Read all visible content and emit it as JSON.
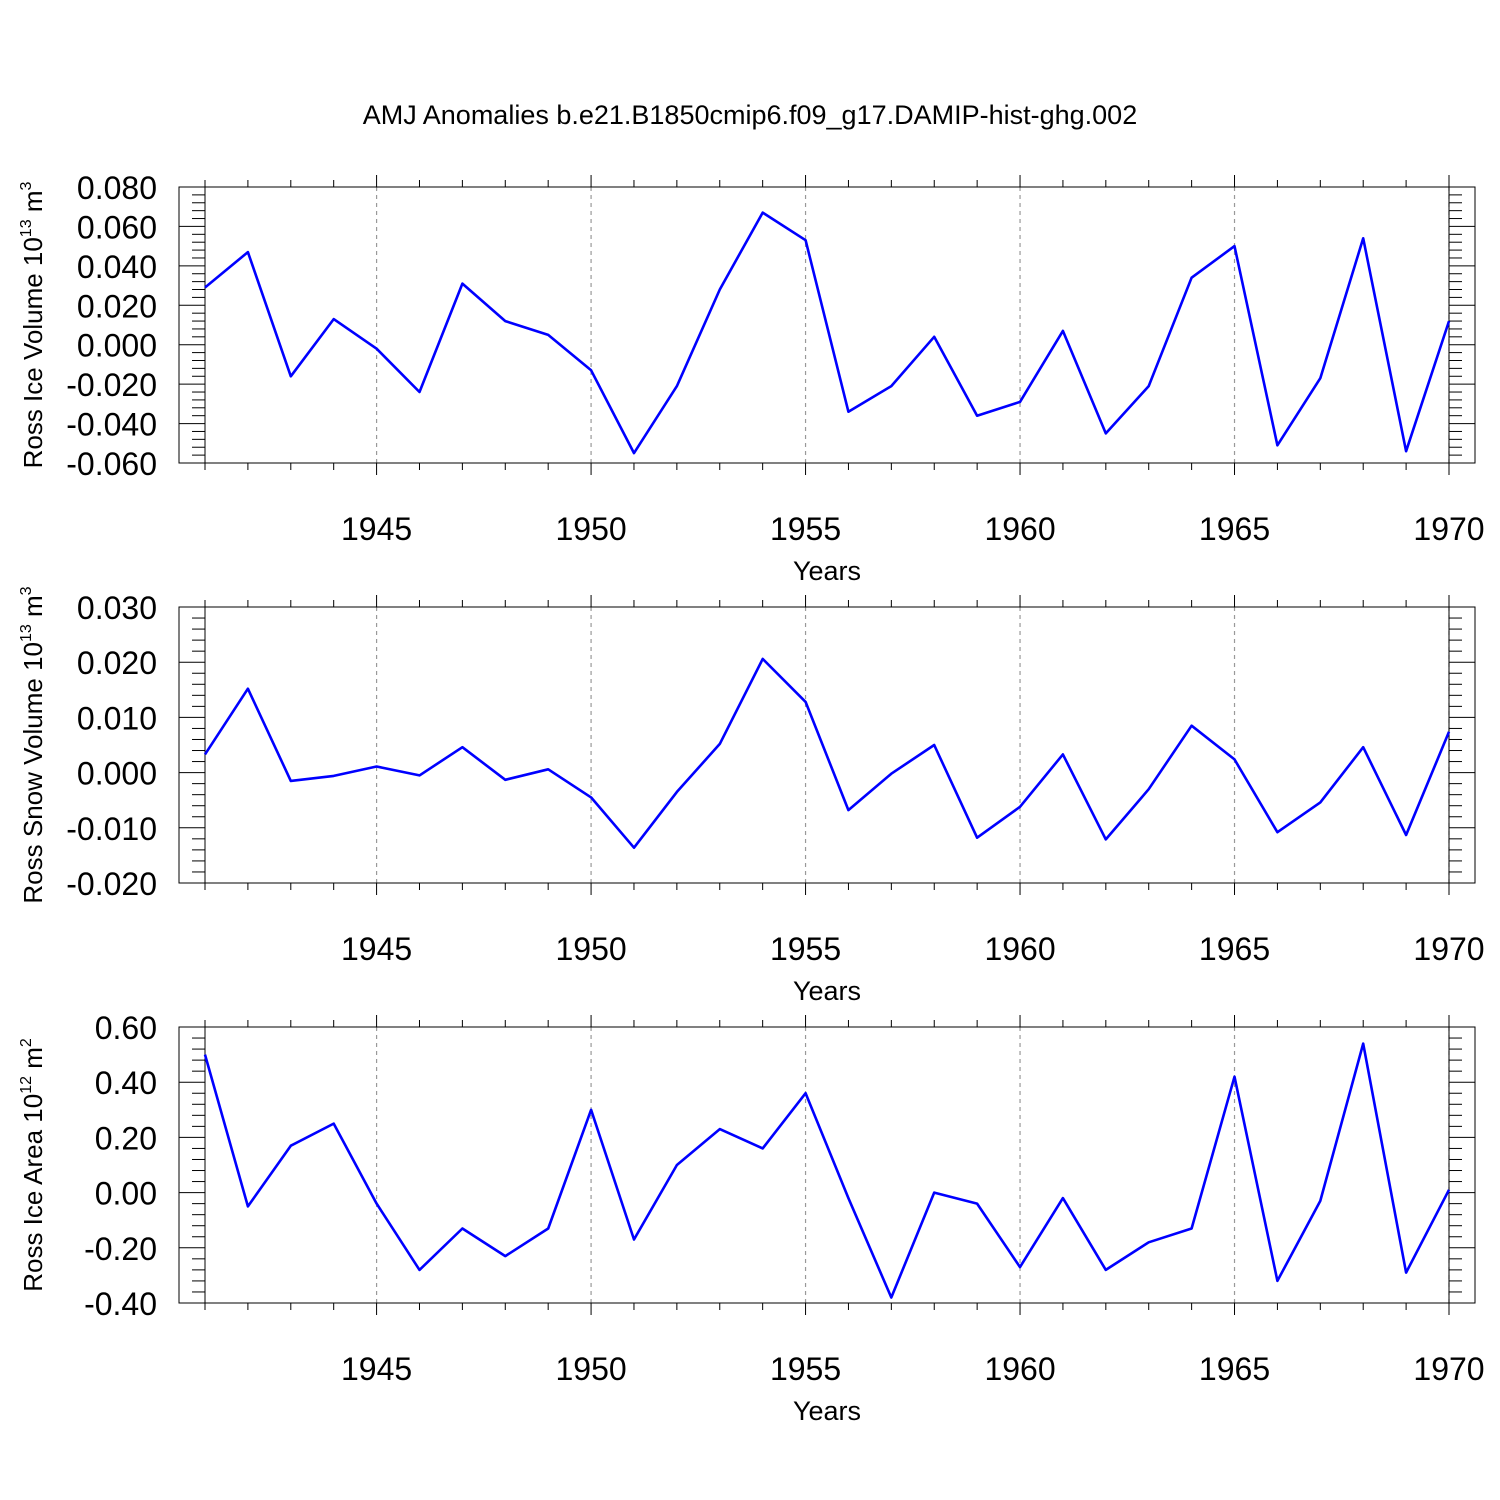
{
  "title": "AMJ Anomalies b.e21.B1850cmip6.f09_g17.DAMIP-hist-ghg.002",
  "chart_data": [
    {
      "type": "line",
      "ylabel": "Ross Ice Volume 10",
      "ylabel_exp": "13",
      "ylabel_unit": " m",
      "ylabel_unit_exp": "3",
      "xlabel": "Years",
      "xlim": [
        1941,
        1970
      ],
      "ylim": [
        -0.06,
        0.08
      ],
      "yticks": [
        -0.06,
        -0.04,
        -0.02,
        0.0,
        0.02,
        0.04,
        0.06,
        0.08
      ],
      "ytick_labels": [
        "-0.060",
        "-0.040",
        "-0.020",
        "0.000",
        "0.020",
        "0.040",
        "0.060",
        "0.080"
      ],
      "xticks": [
        1945,
        1950,
        1955,
        1960,
        1965,
        1970
      ],
      "xtick_labels": [
        "1945",
        "1950",
        "1955",
        "1960",
        "1965",
        "1970"
      ],
      "grid": "dashed vertical at labeled years",
      "color": "#0000ff",
      "x": [
        1941,
        1942,
        1943,
        1944,
        1945,
        1946,
        1947,
        1948,
        1949,
        1950,
        1951,
        1952,
        1953,
        1954,
        1955,
        1956,
        1957,
        1958,
        1959,
        1960,
        1961,
        1962,
        1963,
        1964,
        1965,
        1966,
        1967,
        1968,
        1969,
        1970
      ],
      "values": [
        0.029,
        0.047,
        -0.016,
        0.013,
        -0.002,
        -0.024,
        0.031,
        0.012,
        0.005,
        -0.013,
        -0.055,
        -0.021,
        0.028,
        0.067,
        0.053,
        -0.034,
        -0.021,
        0.004,
        -0.036,
        -0.029,
        0.007,
        -0.045,
        -0.021,
        0.034,
        0.05,
        -0.051,
        -0.017,
        0.054,
        -0.054,
        0.012
      ]
    },
    {
      "type": "line",
      "ylabel": "Ross Snow Volume 10",
      "ylabel_exp": "13",
      "ylabel_unit": " m",
      "ylabel_unit_exp": "3",
      "xlabel": "Years",
      "xlim": [
        1941,
        1970
      ],
      "ylim": [
        -0.02,
        0.03
      ],
      "yticks": [
        -0.02,
        -0.01,
        0.0,
        0.01,
        0.02,
        0.03
      ],
      "ytick_labels": [
        "-0.020",
        "-0.010",
        "0.000",
        "0.010",
        "0.020",
        "0.030"
      ],
      "xticks": [
        1945,
        1950,
        1955,
        1960,
        1965,
        1970
      ],
      "xtick_labels": [
        "1945",
        "1950",
        "1955",
        "1960",
        "1965",
        "1970"
      ],
      "grid": "dashed vertical at labeled years",
      "color": "#0000ff",
      "x": [
        1941,
        1942,
        1943,
        1944,
        1945,
        1946,
        1947,
        1948,
        1949,
        1950,
        1951,
        1952,
        1953,
        1954,
        1955,
        1956,
        1957,
        1958,
        1959,
        1960,
        1961,
        1962,
        1963,
        1964,
        1965,
        1966,
        1967,
        1968,
        1969,
        1970
      ],
      "values": [
        0.0033,
        0.0152,
        -0.0015,
        -0.0006,
        0.0011,
        -0.0005,
        0.0046,
        -0.0013,
        0.0006,
        -0.0045,
        -0.0136,
        -0.0035,
        0.0052,
        0.0206,
        0.0128,
        -0.0068,
        -0.0002,
        0.005,
        -0.0118,
        -0.0062,
        0.0033,
        -0.0121,
        -0.003,
        0.0085,
        0.0024,
        -0.0108,
        -0.0054,
        0.0046,
        -0.0113,
        0.0074
      ]
    },
    {
      "type": "line",
      "ylabel": "Ross Ice Area 10",
      "ylabel_exp": "12",
      "ylabel_unit": " m",
      "ylabel_unit_exp": "2",
      "xlabel": "Years",
      "xlim": [
        1941,
        1970
      ],
      "ylim": [
        -0.4,
        0.6
      ],
      "yticks": [
        -0.4,
        -0.2,
        0.0,
        0.2,
        0.4,
        0.6
      ],
      "ytick_labels": [
        "-0.40",
        "-0.20",
        "0.00",
        "0.20",
        "0.40",
        "0.60"
      ],
      "xticks": [
        1945,
        1950,
        1955,
        1960,
        1965,
        1970
      ],
      "xtick_labels": [
        "1945",
        "1950",
        "1955",
        "1960",
        "1965",
        "1970"
      ],
      "grid": "dashed vertical at labeled years",
      "color": "#0000ff",
      "x": [
        1941,
        1942,
        1943,
        1944,
        1945,
        1946,
        1947,
        1948,
        1949,
        1950,
        1951,
        1952,
        1953,
        1954,
        1955,
        1956,
        1957,
        1958,
        1959,
        1960,
        1961,
        1962,
        1963,
        1964,
        1965,
        1966,
        1967,
        1968,
        1969,
        1970
      ],
      "values": [
        0.5,
        -0.05,
        0.17,
        0.25,
        -0.04,
        -0.28,
        -0.13,
        -0.23,
        -0.13,
        0.3,
        -0.17,
        0.1,
        0.23,
        0.16,
        0.36,
        -0.02,
        -0.38,
        0.0,
        -0.04,
        -0.27,
        -0.02,
        -0.28,
        -0.18,
        -0.13,
        0.42,
        -0.32,
        -0.03,
        0.54,
        -0.29,
        0.01
      ]
    }
  ]
}
